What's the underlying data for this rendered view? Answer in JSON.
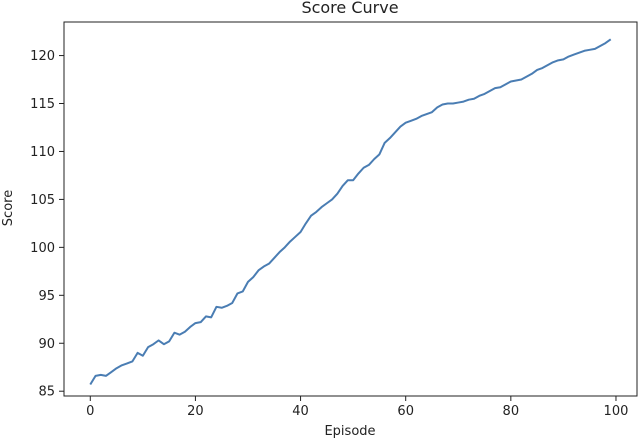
{
  "chart_data": {
    "type": "line",
    "title": "Score Curve",
    "xlabel": "Episode",
    "ylabel": "Score",
    "xlim": [
      -5,
      104
    ],
    "ylim": [
      84.5,
      123.5
    ],
    "xticks": [
      0,
      20,
      40,
      60,
      80,
      100
    ],
    "yticks": [
      85,
      90,
      95,
      100,
      105,
      110,
      115,
      120
    ],
    "grid": false,
    "color": "#4a7db3",
    "series": [
      {
        "x": [
          0,
          1,
          2,
          3,
          4,
          5,
          6,
          7,
          8,
          9,
          10,
          11,
          12,
          13,
          14,
          15,
          16,
          17,
          18,
          19,
          20,
          21,
          22,
          23,
          24,
          25,
          26,
          27,
          28,
          29,
          30,
          31,
          32,
          33,
          34,
          35,
          36,
          37,
          38,
          39,
          40,
          41,
          42,
          43,
          44,
          45,
          46,
          47,
          48,
          49,
          50,
          51,
          52,
          53,
          54,
          55,
          56,
          57,
          58,
          59,
          60,
          61,
          62,
          63,
          64,
          65,
          66,
          67,
          68,
          69,
          70,
          71,
          72,
          73,
          74,
          75,
          76,
          77,
          78,
          79,
          80,
          81,
          82,
          83,
          84,
          85,
          86,
          87,
          88,
          89,
          90,
          91,
          92,
          93,
          94,
          95,
          96,
          97,
          98,
          99
        ],
        "values": [
          85.7,
          86.6,
          86.7,
          86.6,
          87.0,
          87.4,
          87.7,
          87.9,
          88.1,
          89.0,
          88.7,
          89.6,
          89.9,
          90.3,
          89.9,
          90.2,
          91.1,
          90.9,
          91.2,
          91.7,
          92.1,
          92.2,
          92.8,
          92.7,
          93.8,
          93.7,
          93.9,
          94.2,
          95.2,
          95.4,
          96.4,
          96.9,
          97.6,
          98.0,
          98.3,
          98.9,
          99.5,
          100.0,
          100.6,
          101.1,
          101.6,
          102.5,
          103.3,
          103.7,
          104.2,
          104.6,
          105.0,
          105.6,
          106.4,
          107.0,
          107.0,
          107.7,
          108.3,
          108.6,
          109.2,
          109.7,
          110.9,
          111.4,
          112.0,
          112.6,
          113.0,
          113.2,
          113.4,
          113.7,
          113.9,
          114.1,
          114.6,
          114.9,
          115.0,
          115.0,
          115.1,
          115.2,
          115.4,
          115.5,
          115.8,
          116.0,
          116.3,
          116.6,
          116.7,
          117.0,
          117.3,
          117.4,
          117.5,
          117.8,
          118.1,
          118.5,
          118.7,
          119.0,
          119.3,
          119.5,
          119.6,
          119.9,
          120.1,
          120.3,
          120.5,
          120.6,
          120.7,
          121.0,
          121.3,
          121.7
        ]
      }
    ]
  }
}
